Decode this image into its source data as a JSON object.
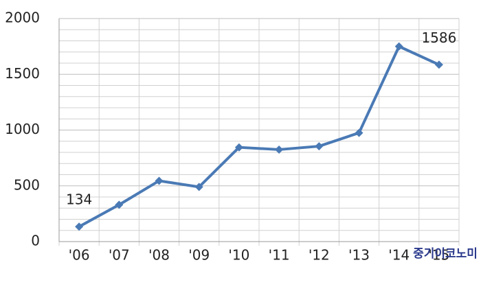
{
  "chart_data": {
    "type": "line",
    "categories": [
      "'06",
      "'07",
      "'08",
      "'09",
      "'10",
      "'11",
      "'12",
      "'13",
      "'14",
      "'15"
    ],
    "series": [
      {
        "color": "#4a7ab5",
        "values": [
          134,
          330,
          545,
          490,
          845,
          825,
          855,
          975,
          1750,
          1586
        ],
        "value_labels": [
          "134",
          null,
          null,
          null,
          null,
          null,
          null,
          null,
          null,
          "1586"
        ]
      }
    ],
    "ylim": [
      0,
      2000
    ],
    "yticks": [
      0,
      500,
      1000,
      1500,
      2000
    ],
    "minor_yticks": [
      100,
      200,
      300,
      400,
      600,
      700,
      800,
      900,
      1100,
      1200,
      1300,
      1400,
      1600,
      1700,
      1800,
      1900
    ],
    "grid": true,
    "watermark": "중기이코노미"
  }
}
